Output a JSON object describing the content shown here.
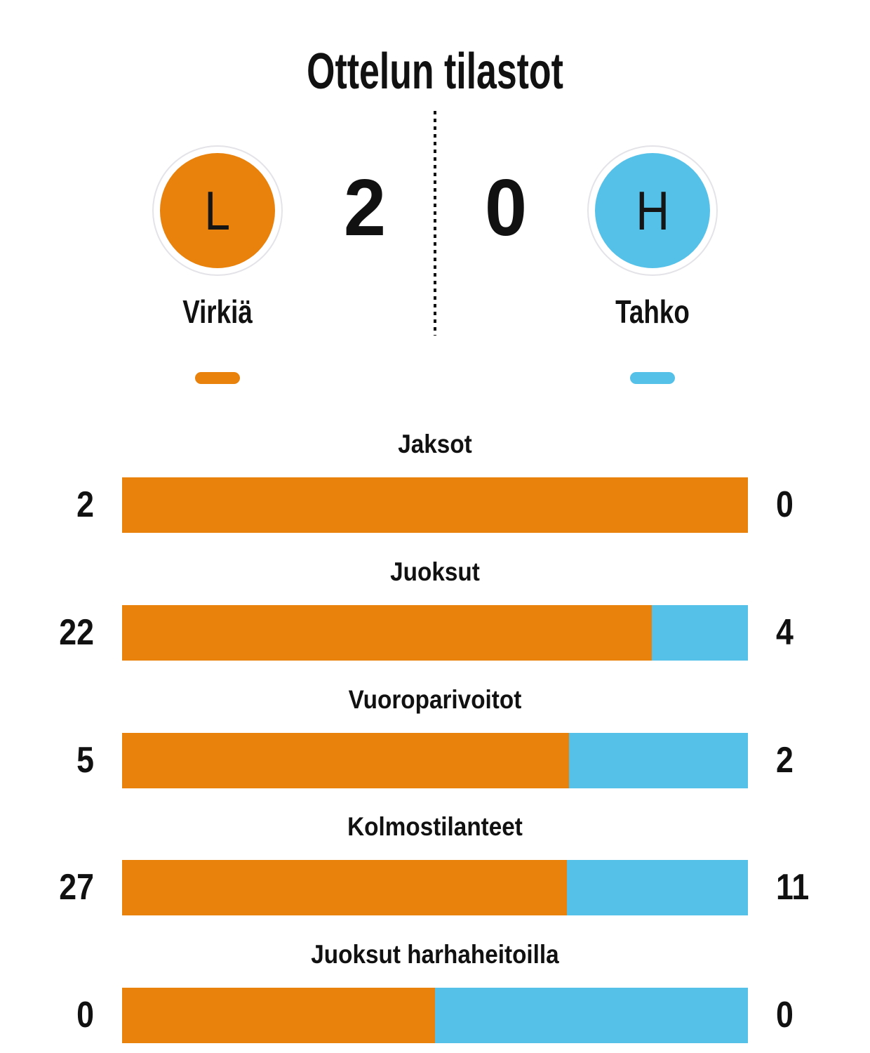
{
  "title": "Ottelun tilastot",
  "colors": {
    "home": "#E8820C",
    "away": "#56C1E8",
    "ring": "#E3E3E8",
    "text": "#111111"
  },
  "scoreboard": {
    "home": {
      "name": "Virkiä",
      "letter": "L",
      "score": "2"
    },
    "away": {
      "name": "Tahko",
      "letter": "H",
      "score": "0"
    }
  },
  "chart_data": {
    "type": "bar",
    "orientation": "horizontal-split",
    "title": "Ottelun tilastot",
    "legend_position": "none",
    "grid": false,
    "categories": [
      "Jaksot",
      "Juoksut",
      "Vuoroparivoitot",
      "Kolmostilanteet",
      "Juoksut harhaheitoilla"
    ],
    "series": [
      {
        "name": "Virkiä",
        "color": "#E8820C",
        "values": [
          2,
          22,
          5,
          27,
          0
        ]
      },
      {
        "name": "Tahko",
        "color": "#56C1E8",
        "values": [
          0,
          4,
          2,
          11,
          0
        ]
      }
    ],
    "split_rule": "home/(home+away), 50% when both 0"
  }
}
